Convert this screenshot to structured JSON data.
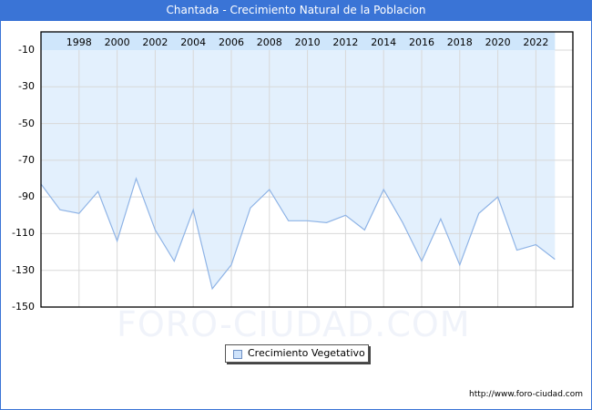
{
  "header": {
    "title": "Chantada - Crecimiento Natural de la Poblacion"
  },
  "legend": {
    "label": "Crecimiento Vegetativo"
  },
  "footer": {
    "url": "http://www.foro-ciudad.com"
  },
  "watermark": "FORO-CIUDAD.COM",
  "colors": {
    "title_bar": "#3a74d6",
    "fill": "#e3f0fd",
    "band": "#cfe6fb",
    "line": "#8fb4e6",
    "grid": "#d8d8d8"
  },
  "chart_data": {
    "type": "area",
    "title": "Chantada - Crecimiento Natural de la Poblacion",
    "xlabel": "",
    "ylabel": "",
    "ylim": [
      -150,
      0
    ],
    "yticks": [
      -10,
      -30,
      -50,
      -70,
      -90,
      -110,
      -130,
      -150
    ],
    "xticks": [
      1998,
      2000,
      2002,
      2004,
      2006,
      2008,
      2010,
      2012,
      2014,
      2016,
      2018,
      2020,
      2022
    ],
    "grid": true,
    "legend_position": "bottom",
    "x": [
      1996,
      1997,
      1998,
      1999,
      2000,
      2001,
      2002,
      2003,
      2004,
      2005,
      2006,
      2007,
      2008,
      2009,
      2010,
      2011,
      2012,
      2013,
      2014,
      2015,
      2016,
      2017,
      2018,
      2019,
      2020,
      2021,
      2022,
      2023
    ],
    "series": [
      {
        "name": "Crecimiento Vegetativo",
        "values": [
          -83,
          -97,
          -99,
          -87,
          -114,
          -80,
          -108,
          -125,
          -97,
          -140,
          -127,
          -96,
          -86,
          -103,
          -103,
          -104,
          -100,
          -108,
          -86,
          -104,
          -125,
          -102,
          -127,
          -99,
          -90,
          -119,
          -116,
          -124
        ]
      }
    ]
  }
}
